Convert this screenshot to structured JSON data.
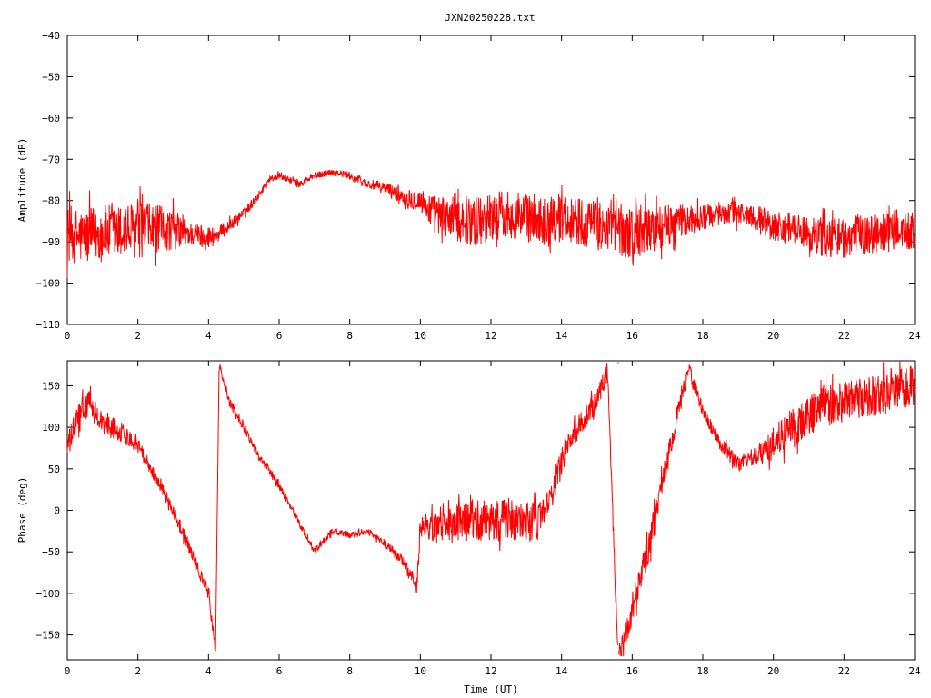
{
  "chart_data": [
    {
      "type": "line",
      "title": "JXN20250228.txt",
      "xlabel": "",
      "ylabel": "Amplitude (dB)",
      "xlim": [
        0,
        24
      ],
      "ylim": [
        -110,
        -40
      ],
      "xticks": [
        0,
        2,
        4,
        6,
        8,
        10,
        12,
        14,
        16,
        18,
        20,
        22,
        24
      ],
      "yticks": [
        -40,
        -50,
        -60,
        -70,
        -80,
        -90,
        -100,
        -110
      ],
      "grid": false,
      "color": "#ff0000",
      "series": [
        {
          "x": [
            0,
            0.5,
            1,
            1.5,
            2,
            2.5,
            3,
            3.5,
            4,
            4.3,
            4.6,
            5,
            5.4,
            5.7,
            6,
            6.3,
            6.6,
            7,
            7.5,
            8,
            8.5,
            9,
            9.5,
            10,
            10.5,
            11,
            11.5,
            12,
            12.5,
            13,
            13.5,
            14,
            14.5,
            15,
            15.5,
            16,
            16.5,
            17,
            17.5,
            18,
            18.5,
            19,
            19.5,
            20,
            20.5,
            21,
            21.5,
            22,
            22.5,
            23,
            23.5,
            24
          ],
          "values": [
            -88,
            -89,
            -88,
            -88,
            -87,
            -87,
            -87,
            -88,
            -89,
            -88,
            -86,
            -83,
            -79,
            -75,
            -74,
            -75,
            -76,
            -74,
            -73,
            -74,
            -76,
            -77,
            -79,
            -80,
            -84,
            -84,
            -85,
            -84,
            -83,
            -84,
            -85,
            -84,
            -85,
            -86,
            -87,
            -88,
            -87,
            -86,
            -85,
            -84,
            -83,
            -83,
            -84,
            -86,
            -87,
            -88,
            -89,
            -89,
            -88,
            -88,
            -87,
            -88
          ],
          "spread": [
            7,
            7,
            7,
            7,
            7,
            6,
            5,
            3,
            3,
            2,
            1.5,
            1.2,
            1,
            0.8,
            0.8,
            0.8,
            0.8,
            0.8,
            0.8,
            1,
            1.2,
            1.5,
            2,
            3,
            5,
            6,
            6,
            6,
            6,
            6,
            6,
            6,
            6,
            6,
            6,
            7,
            6,
            5,
            4,
            3,
            3,
            3,
            3,
            4,
            4,
            4,
            5,
            5,
            5,
            5,
            5,
            5
          ]
        }
      ]
    },
    {
      "type": "line",
      "title": "",
      "xlabel": "Time (UT)",
      "ylabel": "Phase (deg)",
      "xlim": [
        0,
        24
      ],
      "ylim": [
        -180,
        180
      ],
      "xticks": [
        0,
        2,
        4,
        6,
        8,
        10,
        12,
        14,
        16,
        18,
        20,
        22,
        24
      ],
      "yticks": [
        150,
        100,
        50,
        0,
        -50,
        -100,
        -150
      ],
      "grid": false,
      "color": "#ff0000",
      "series": [
        {
          "x": [
            0,
            0.3,
            0.6,
            1,
            1.5,
            2,
            2.5,
            3,
            3.5,
            4,
            4.2,
            4.3,
            4.6,
            5,
            5.5,
            6,
            6.5,
            7,
            7.5,
            8,
            8.5,
            9,
            9.5,
            9.9,
            10,
            10.5,
            11,
            11.5,
            12,
            12.5,
            13,
            13.5,
            14,
            14.5,
            15,
            15.3,
            15.6,
            16,
            16.5,
            17,
            17.4,
            17.6,
            18,
            18.5,
            19,
            19.5,
            20,
            20.5,
            21,
            21.5,
            22,
            22.5,
            23,
            23.5,
            24
          ],
          "values": [
            75,
            110,
            130,
            105,
            95,
            80,
            40,
            0,
            -50,
            -100,
            -170,
            175,
            130,
            100,
            60,
            30,
            -10,
            -50,
            -25,
            -30,
            -25,
            -40,
            -60,
            -95,
            -20,
            -20,
            -20,
            -10,
            -15,
            -10,
            -15,
            -10,
            60,
            100,
            130,
            170,
            -180,
            -120,
            -40,
            60,
            140,
            170,
            120,
            80,
            55,
            65,
            80,
            100,
            115,
            125,
            130,
            135,
            140,
            145,
            150
          ],
          "spread": [
            15,
            20,
            15,
            15,
            12,
            10,
            8,
            8,
            8,
            8,
            5,
            5,
            6,
            6,
            5,
            5,
            4,
            4,
            4,
            4,
            4,
            5,
            6,
            10,
            15,
            20,
            25,
            25,
            25,
            25,
            25,
            25,
            20,
            15,
            15,
            10,
            10,
            20,
            20,
            15,
            10,
            10,
            8,
            8,
            10,
            12,
            20,
            25,
            25,
            25,
            25,
            25,
            25,
            25,
            25
          ]
        }
      ]
    }
  ]
}
